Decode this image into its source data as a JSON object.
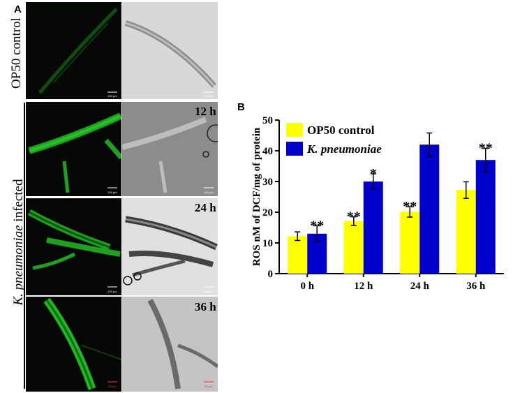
{
  "panels": {
    "a": "A",
    "b": "B"
  },
  "microscopy": {
    "control_label": "OP50 control",
    "infected_label_italic": "K. pneumoniae",
    "infected_label_rest": " infected",
    "time_labels": [
      "12 h",
      "24 h",
      "36 h"
    ],
    "scale_bars": [
      "100 μm",
      "100 μm",
      "100 μm",
      "100 μm",
      "100 μm",
      "100 μm",
      "50 μm",
      "50 μm"
    ],
    "colors": {
      "fluorescence": "#1fb81f",
      "brightfield_bg": "#cfcfcf",
      "dark_bg": "#050805"
    }
  },
  "chart_data": {
    "type": "bar",
    "categories": [
      "0 h",
      "12 h",
      "24 h",
      "36 h"
    ],
    "series": [
      {
        "name": "OP50 control",
        "color": "#ffff00",
        "values": [
          12.2,
          17.1,
          20.1,
          27.2
        ],
        "errors": [
          1.4,
          1.4,
          1.7,
          2.7
        ],
        "significance": [
          "",
          "**",
          "**",
          ""
        ]
      },
      {
        "name": "K. pneumoniae",
        "color": "#0000cc",
        "values": [
          13.0,
          30.0,
          42.0,
          37.0
        ],
        "errors": [
          2.6,
          2.5,
          3.8,
          3.8
        ],
        "significance": [
          "**",
          "*",
          "",
          "**"
        ]
      }
    ],
    "ylabel": "ROS nM of DCF/mg of protein",
    "ylim": [
      0,
      50
    ],
    "yticks": [
      0,
      10,
      20,
      30,
      40,
      50
    ],
    "legend": "top-left",
    "grid": false
  }
}
